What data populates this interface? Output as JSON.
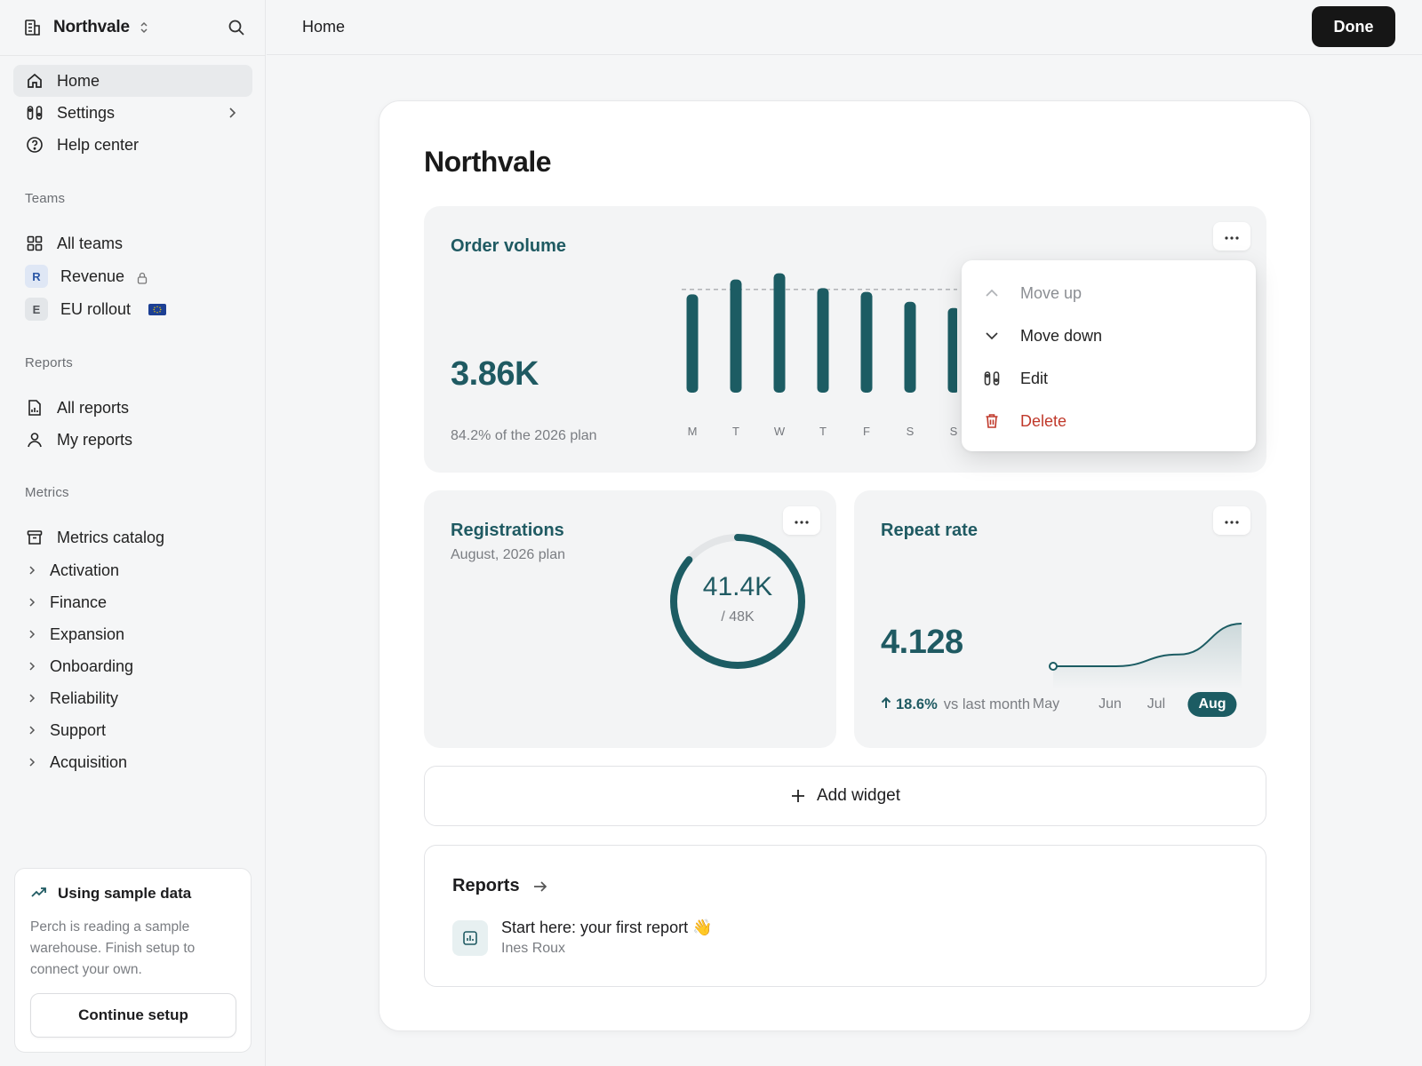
{
  "workspace": {
    "name": "Northvale"
  },
  "nav": {
    "home": "Home",
    "settings": "Settings",
    "help": "Help center"
  },
  "teams": {
    "heading": "Teams",
    "all": "All teams",
    "items": [
      {
        "initial": "R",
        "label": "Revenue"
      },
      {
        "initial": "E",
        "label": "EU rollout"
      }
    ]
  },
  "reports_nav": {
    "heading": "Reports",
    "all": "All reports",
    "mine": "My reports"
  },
  "metrics_nav": {
    "heading": "Metrics",
    "catalog": "Metrics catalog",
    "children": [
      "Activation",
      "Finance",
      "Expansion",
      "Onboarding",
      "Reliability",
      "Support",
      "Acquisition"
    ]
  },
  "sample": {
    "title": "Using sample data",
    "text": "Perch is reading a sample warehouse. Finish setup to connect your own.",
    "button": "Continue setup"
  },
  "topbar": {
    "breadcrumb": "Home",
    "done": "Done"
  },
  "page": {
    "title": "Northvale"
  },
  "order_volume": {
    "title": "Order volume",
    "value": "3.86K",
    "subtitle": "84.2% of the 2026 plan"
  },
  "chart_data": [
    {
      "type": "bar",
      "title": "Order volume",
      "categories": [
        "M",
        "T",
        "W",
        "T",
        "F",
        "S",
        "S"
      ],
      "values": [
        0.79,
        0.91,
        0.96,
        0.84,
        0.81,
        0.73,
        0.68
      ],
      "target_line": 0.83,
      "note": "values relative to plan; y-axis not printed"
    },
    {
      "type": "line",
      "title": "Repeat rate",
      "categories": [
        "May",
        "Jun",
        "Jul",
        "Aug"
      ],
      "values": [
        0.2,
        0.2,
        0.42,
        1.0
      ],
      "selected": "Aug"
    }
  ],
  "menu": {
    "move_up": "Move up",
    "move_down": "Move down",
    "edit": "Edit",
    "delete": "Delete"
  },
  "registrations": {
    "title": "Registrations",
    "subtitle": "August, 2026 plan",
    "value": "41.4K",
    "target": "/ 48K",
    "progress": 0.8625
  },
  "repeat_rate": {
    "title": "Repeat rate",
    "value": "4.128",
    "change": "18.6%",
    "change_label": "vs last month",
    "months": [
      "May",
      "Jun",
      "Jul",
      "Aug"
    ]
  },
  "add_widget": "Add widget",
  "reports_section": {
    "title": "Reports",
    "item_title": "Start here: your first report 👋",
    "item_author": "Ines Roux"
  },
  "colors": {
    "accent": "#1c5c63",
    "danger": "#c0392b"
  }
}
